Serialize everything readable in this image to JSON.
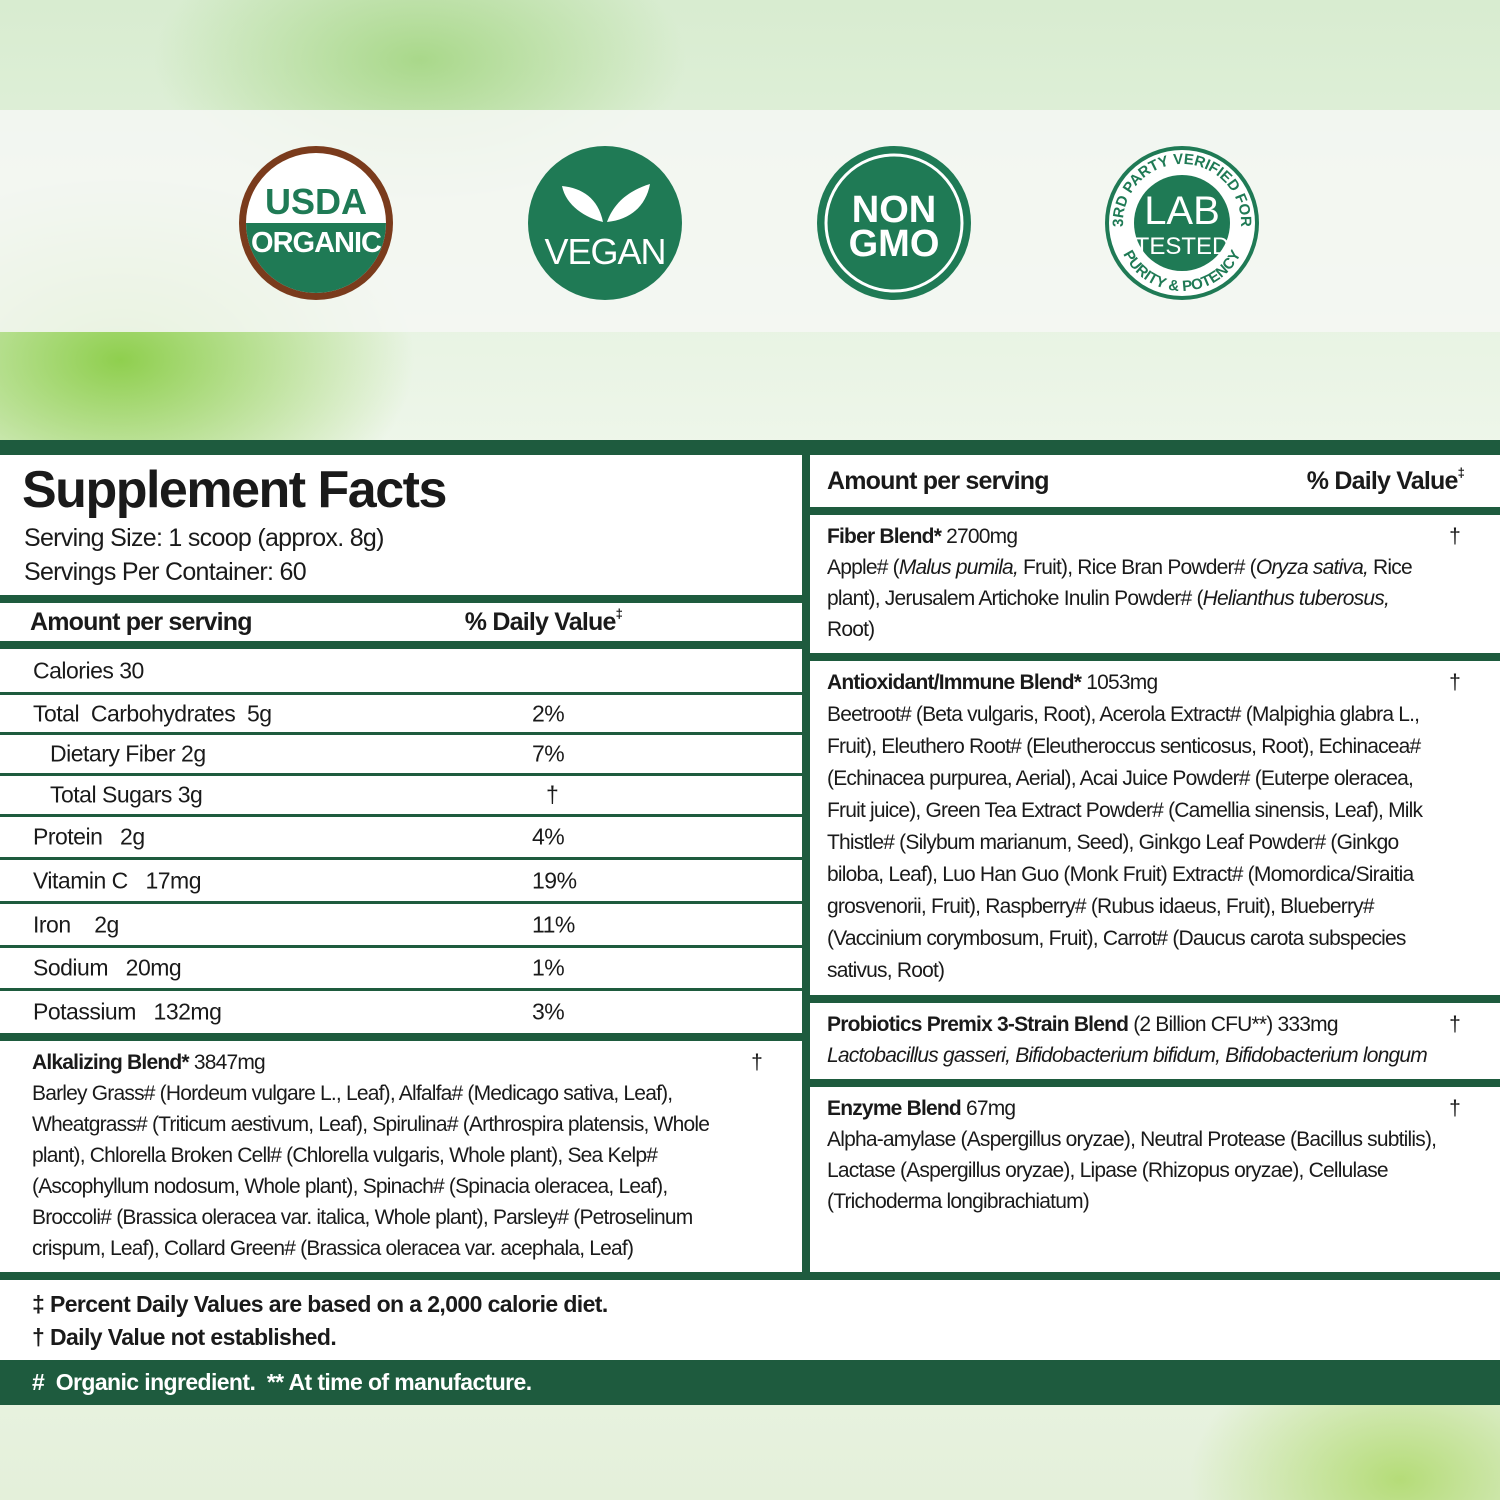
{
  "colors": {
    "brand_green": "#1e5b3e",
    "badge_green": "#1f7a55",
    "usda_brown": "#7a3b1c"
  },
  "badges": [
    {
      "name": "usda-organic",
      "lines": [
        "USDA",
        "ORGANIC"
      ]
    },
    {
      "name": "vegan",
      "lines": [
        "VEGAN"
      ],
      "icon": "leaf-icon"
    },
    {
      "name": "non-gmo",
      "lines": [
        "NON",
        "GMO"
      ]
    },
    {
      "name": "lab-tested",
      "lines": [
        "LAB",
        "TESTED"
      ],
      "ring_top": "3RD PARTY VERIFIED FOR",
      "ring_bottom": "PURITY & POTENCY"
    }
  ],
  "facts": {
    "title": "Supplement Facts",
    "serving_size": "Serving Size: 1 scoop (approx. 8g)",
    "servings_per_container": "Servings Per Container: 60",
    "header_amount": "Amount per serving",
    "header_dv": "% Daily Value",
    "dv_mark": "‡",
    "rows": [
      {
        "name": "Calories 30",
        "dv": ""
      },
      {
        "name": "Total  Carbohydrates  5g",
        "dv": "2%"
      },
      {
        "name": "Dietary Fiber 2g",
        "dv": "7%"
      },
      {
        "name": "Total Sugars 3g",
        "dv": "†"
      },
      {
        "name": "Protein   2g",
        "dv": "4%"
      },
      {
        "name": "Vitamin C   17mg",
        "dv": "19%"
      },
      {
        "name": "Iron    2g",
        "dv": "11%"
      },
      {
        "name": "Sodium   20mg",
        "dv": "1%"
      },
      {
        "name": "Potassium   132mg",
        "dv": "3%"
      }
    ]
  },
  "blends": {
    "alkalizing": {
      "name": "Alkalizing Blend*",
      "amount": "3847mg",
      "dv": "†",
      "segments": [
        {
          "t": "Barley Grass# (Hordeum vulgare L., Leaf), Alfalfa# (Medicago sativa, Leaf), Wheatgrass# (Triticum aestivum, Leaf), Spirulina# (Arthrospira platensis, Whole plant), Chlorella Broken Cell# (Chlorella vulgaris, Whole plant), Sea Kelp# (Ascophyllum nodosum, Whole plant), Spinach# (Spinacia oleracea, Leaf), Broccoli# (Brassica oleracea var. italica, Whole plant), Parsley# (Petroselinum crispum, Leaf), Collard Green# (Brassica oleracea var. acephala, Leaf)",
          "i": false
        }
      ]
    },
    "fiber": {
      "name": "Fiber Blend*",
      "amount": "2700mg",
      "dv": "†",
      "segments": [
        {
          "t": "Apple# (",
          "i": false
        },
        {
          "t": "Malus pumila,",
          "i": true
        },
        {
          "t": " Fruit), Rice Bran Powder# (",
          "i": false
        },
        {
          "t": "Oryza sativa,",
          "i": true
        },
        {
          "t": " Rice plant), Jerusalem Artichoke Inulin Powder# (",
          "i": false
        },
        {
          "t": "Helianthus tuberosus,",
          "i": true
        },
        {
          "t": " Root)",
          "i": false
        }
      ]
    },
    "antioxidant": {
      "name": "Antioxidant/Immune Blend*",
      "amount": "1053mg",
      "dv": "†",
      "segments": [
        {
          "t": "Beetroot# (Beta vulgaris, Root), Acerola Extract# (Malpighia glabra L., Fruit), Eleuthero Root# (Eleutheroccus senticosus, Root), Echinacea# (Echinacea purpurea, Aerial), Acai Juice Powder# (Euterpe oleracea, Fruit juice), Green Tea Extract Powder# (Camellia sinensis, Leaf), Milk Thistle# (Silybum marianum, Seed), Ginkgo Leaf Powder# (Ginkgo biloba, Leaf), Luo Han Guo (Monk Fruit) Extract# (Momordica/Siraitia grosvenorii, Fruit), Raspberry# (Rubus idaeus, Fruit), Blueberry# (Vaccinium corymbosum, Fruit), Carrot# (Daucus carota subspecies sativus, Root)",
          "i": false
        }
      ]
    },
    "probiotics": {
      "name": "Probiotics Premix 3-Strain Blend",
      "amount": "(2 Billion CFU**) 333mg",
      "dv": "†",
      "segments": [
        {
          "t": "Lactobacillus gasseri, Bifidobacterium bifidum, Bifidobacterium longum",
          "i": true
        }
      ]
    },
    "enzyme": {
      "name": "Enzyme Blend",
      "amount": "67mg",
      "dv": "†",
      "segments": [
        {
          "t": "Alpha-amylase (Aspergillus oryzae), Neutral Protease (Bacillus subtilis), Lactase (Aspergillus oryzae), Lipase (Rhizopus oryzae), Cellulase (Trichoderma longibrachiatum)",
          "i": false
        }
      ]
    }
  },
  "footnotes": {
    "dv_note": "‡ Percent Daily Values are based on a 2,000 calorie diet.",
    "not_established": "† Daily Value not established.",
    "organic": "#  Organic ingredient.  ** At time of manufacture."
  }
}
